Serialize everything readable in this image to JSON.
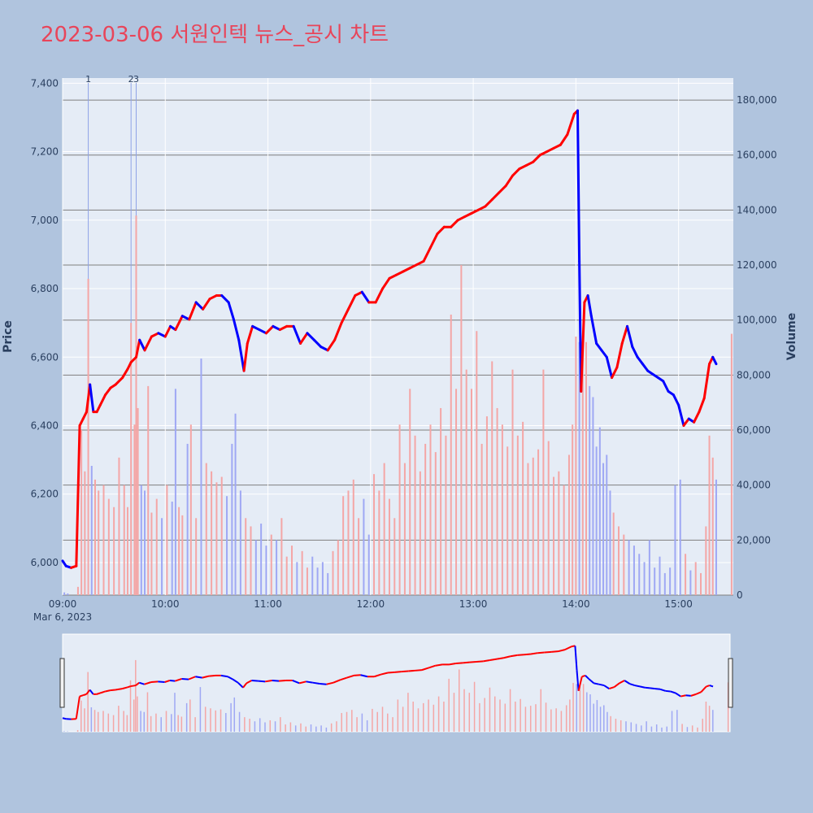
{
  "chart_data": {
    "type": "candlestick",
    "title": "2023-03-06 서원인텍 뉴스_공시 차트",
    "ylabel_left": "Price",
    "ylabel_right": "Volume",
    "x_date_label": "Mar 6, 2023",
    "x_ticks": [
      "09:00",
      "10:00",
      "11:00",
      "12:00",
      "13:00",
      "14:00",
      "15:00"
    ],
    "price_ticks": [
      "6,000",
      "6,200",
      "6,400",
      "6,600",
      "6,800",
      "7,000",
      "7,200",
      "7,400"
    ],
    "price_tick_values": [
      6000,
      6200,
      6400,
      6600,
      6800,
      7000,
      7200,
      7400
    ],
    "volume_ticks": [
      "0",
      "20,000",
      "40,000",
      "60,000",
      "80,000",
      "100,000",
      "120,000",
      "140,000",
      "160,000",
      "180,000"
    ],
    "volume_tick_values": [
      0,
      20000,
      40000,
      60000,
      80000,
      100000,
      120000,
      140000,
      160000,
      180000
    ],
    "price_range": [
      5905,
      7415
    ],
    "volume_range": [
      0,
      188000
    ],
    "time_range_minutes": [
      0,
      392
    ],
    "colors": {
      "up": "#ff0000",
      "down": "#0000ff",
      "up_volume": "#f4a6a6",
      "down_volume": "#9fa8f4",
      "title": "#e8455a"
    },
    "annotations": [
      {
        "label": "1",
        "minute": 15
      },
      {
        "label": "2",
        "minute": 40
      },
      {
        "label": "3",
        "minute": 43
      }
    ],
    "price_path": [
      [
        0,
        6005
      ],
      [
        2,
        5990
      ],
      [
        5,
        5985
      ],
      [
        8,
        5990
      ],
      [
        10,
        6400
      ],
      [
        12,
        6420
      ],
      [
        14,
        6440
      ],
      [
        16,
        6520
      ],
      [
        18,
        6440
      ],
      [
        20,
        6440
      ],
      [
        22,
        6460
      ],
      [
        25,
        6490
      ],
      [
        28,
        6510
      ],
      [
        31,
        6520
      ],
      [
        35,
        6540
      ],
      [
        38,
        6565
      ],
      [
        40,
        6585
      ],
      [
        43,
        6600
      ],
      [
        45,
        6650
      ],
      [
        48,
        6620
      ],
      [
        52,
        6660
      ],
      [
        56,
        6670
      ],
      [
        60,
        6660
      ],
      [
        63,
        6690
      ],
      [
        66,
        6680
      ],
      [
        70,
        6720
      ],
      [
        74,
        6710
      ],
      [
        78,
        6760
      ],
      [
        82,
        6740
      ],
      [
        86,
        6770
      ],
      [
        90,
        6780
      ],
      [
        93,
        6780
      ],
      [
        97,
        6760
      ],
      [
        100,
        6710
      ],
      [
        103,
        6650
      ],
      [
        106,
        6560
      ],
      [
        108,
        6640
      ],
      [
        111,
        6690
      ],
      [
        115,
        6680
      ],
      [
        119,
        6670
      ],
      [
        123,
        6690
      ],
      [
        127,
        6680
      ],
      [
        131,
        6690
      ],
      [
        135,
        6690
      ],
      [
        139,
        6640
      ],
      [
        143,
        6670
      ],
      [
        147,
        6650
      ],
      [
        151,
        6630
      ],
      [
        155,
        6620
      ],
      [
        159,
        6650
      ],
      [
        163,
        6700
      ],
      [
        167,
        6740
      ],
      [
        171,
        6780
      ],
      [
        175,
        6790
      ],
      [
        179,
        6760
      ],
      [
        183,
        6760
      ],
      [
        187,
        6800
      ],
      [
        191,
        6830
      ],
      [
        195,
        6840
      ],
      [
        199,
        6850
      ],
      [
        203,
        6860
      ],
      [
        207,
        6870
      ],
      [
        211,
        6880
      ],
      [
        215,
        6920
      ],
      [
        219,
        6960
      ],
      [
        223,
        6980
      ],
      [
        227,
        6980
      ],
      [
        231,
        7000
      ],
      [
        235,
        7010
      ],
      [
        239,
        7020
      ],
      [
        243,
        7030
      ],
      [
        247,
        7040
      ],
      [
        251,
        7060
      ],
      [
        255,
        7080
      ],
      [
        259,
        7100
      ],
      [
        263,
        7130
      ],
      [
        267,
        7150
      ],
      [
        271,
        7160
      ],
      [
        275,
        7170
      ],
      [
        279,
        7190
      ],
      [
        283,
        7200
      ],
      [
        287,
        7210
      ],
      [
        291,
        7220
      ],
      [
        295,
        7250
      ],
      [
        299,
        7310
      ],
      [
        301,
        7320
      ],
      [
        302,
        6880
      ],
      [
        303,
        6500
      ],
      [
        305,
        6760
      ],
      [
        307,
        6780
      ],
      [
        309,
        6720
      ],
      [
        312,
        6640
      ],
      [
        315,
        6620
      ],
      [
        318,
        6600
      ],
      [
        321,
        6540
      ],
      [
        324,
        6570
      ],
      [
        327,
        6640
      ],
      [
        330,
        6690
      ],
      [
        333,
        6630
      ],
      [
        336,
        6600
      ],
      [
        339,
        6580
      ],
      [
        342,
        6560
      ],
      [
        345,
        6550
      ],
      [
        348,
        6540
      ],
      [
        351,
        6530
      ],
      [
        354,
        6500
      ],
      [
        357,
        6490
      ],
      [
        360,
        6460
      ],
      [
        363,
        6400
      ],
      [
        366,
        6420
      ],
      [
        369,
        6410
      ],
      [
        372,
        6440
      ],
      [
        375,
        6480
      ],
      [
        378,
        6580
      ],
      [
        380,
        6600
      ],
      [
        382,
        6580
      ]
    ],
    "volume_bars": [
      [
        1,
        1000
      ],
      [
        3,
        600
      ],
      [
        9,
        3000
      ],
      [
        11,
        60000
      ],
      [
        13,
        45000
      ],
      [
        15,
        115000
      ],
      [
        17,
        47000
      ],
      [
        19,
        42000
      ],
      [
        21,
        38000
      ],
      [
        24,
        40000
      ],
      [
        27,
        35000
      ],
      [
        30,
        32000
      ],
      [
        33,
        50000
      ],
      [
        36,
        40000
      ],
      [
        38,
        32000
      ],
      [
        40,
        99000
      ],
      [
        42,
        62000
      ],
      [
        43,
        138000
      ],
      [
        44,
        68000
      ],
      [
        46,
        40000
      ],
      [
        48,
        38000
      ],
      [
        50,
        76000
      ],
      [
        52,
        30000
      ],
      [
        55,
        35000
      ],
      [
        58,
        28000
      ],
      [
        61,
        40000
      ],
      [
        64,
        34000
      ],
      [
        66,
        75000
      ],
      [
        68,
        32000
      ],
      [
        70,
        29000
      ],
      [
        73,
        55000
      ],
      [
        75,
        62000
      ],
      [
        78,
        28000
      ],
      [
        81,
        86000
      ],
      [
        84,
        48000
      ],
      [
        87,
        45000
      ],
      [
        90,
        41000
      ],
      [
        93,
        43000
      ],
      [
        96,
        36000
      ],
      [
        99,
        55000
      ],
      [
        101,
        66000
      ],
      [
        104,
        38000
      ],
      [
        107,
        28000
      ],
      [
        110,
        25000
      ],
      [
        113,
        20000
      ],
      [
        116,
        26000
      ],
      [
        119,
        18000
      ],
      [
        122,
        22000
      ],
      [
        125,
        20000
      ],
      [
        128,
        28000
      ],
      [
        131,
        14000
      ],
      [
        134,
        18000
      ],
      [
        137,
        12000
      ],
      [
        140,
        16000
      ],
      [
        143,
        10000
      ],
      [
        146,
        14000
      ],
      [
        149,
        10000
      ],
      [
        152,
        12000
      ],
      [
        155,
        8000
      ],
      [
        158,
        16000
      ],
      [
        161,
        20000
      ],
      [
        164,
        36000
      ],
      [
        167,
        38000
      ],
      [
        170,
        42000
      ],
      [
        173,
        28000
      ],
      [
        176,
        35000
      ],
      [
        179,
        22000
      ],
      [
        182,
        44000
      ],
      [
        185,
        38000
      ],
      [
        188,
        48000
      ],
      [
        191,
        35000
      ],
      [
        194,
        28000
      ],
      [
        197,
        62000
      ],
      [
        200,
        48000
      ],
      [
        203,
        75000
      ],
      [
        206,
        58000
      ],
      [
        209,
        45000
      ],
      [
        212,
        55000
      ],
      [
        215,
        62000
      ],
      [
        218,
        52000
      ],
      [
        221,
        68000
      ],
      [
        224,
        58000
      ],
      [
        227,
        102000
      ],
      [
        230,
        75000
      ],
      [
        233,
        120000
      ],
      [
        236,
        82000
      ],
      [
        239,
        75000
      ],
      [
        242,
        96000
      ],
      [
        245,
        55000
      ],
      [
        248,
        65000
      ],
      [
        251,
        85000
      ],
      [
        254,
        68000
      ],
      [
        257,
        62000
      ],
      [
        260,
        54000
      ],
      [
        263,
        82000
      ],
      [
        266,
        58000
      ],
      [
        269,
        63000
      ],
      [
        272,
        48000
      ],
      [
        275,
        50000
      ],
      [
        278,
        53000
      ],
      [
        281,
        82000
      ],
      [
        284,
        56000
      ],
      [
        287,
        43000
      ],
      [
        290,
        45000
      ],
      [
        293,
        40000
      ],
      [
        296,
        51000
      ],
      [
        298,
        62000
      ],
      [
        300,
        94000
      ],
      [
        302,
        92000
      ],
      [
        304,
        88000
      ],
      [
        306,
        92000
      ],
      [
        308,
        76000
      ],
      [
        310,
        72000
      ],
      [
        312,
        54000
      ],
      [
        314,
        61000
      ],
      [
        316,
        48000
      ],
      [
        318,
        51000
      ],
      [
        320,
        38000
      ],
      [
        322,
        30000
      ],
      [
        325,
        25000
      ],
      [
        328,
        22000
      ],
      [
        331,
        20000
      ],
      [
        334,
        18000
      ],
      [
        337,
        15000
      ],
      [
        340,
        12000
      ],
      [
        343,
        20000
      ],
      [
        346,
        10000
      ],
      [
        349,
        14000
      ],
      [
        352,
        8000
      ],
      [
        355,
        10000
      ],
      [
        358,
        40000
      ],
      [
        361,
        42000
      ],
      [
        364,
        15000
      ],
      [
        367,
        9000
      ],
      [
        370,
        12000
      ],
      [
        373,
        8000
      ],
      [
        376,
        25000
      ],
      [
        378,
        58000
      ],
      [
        380,
        50000
      ],
      [
        382,
        42000
      ],
      [
        391,
        95000
      ]
    ]
  }
}
